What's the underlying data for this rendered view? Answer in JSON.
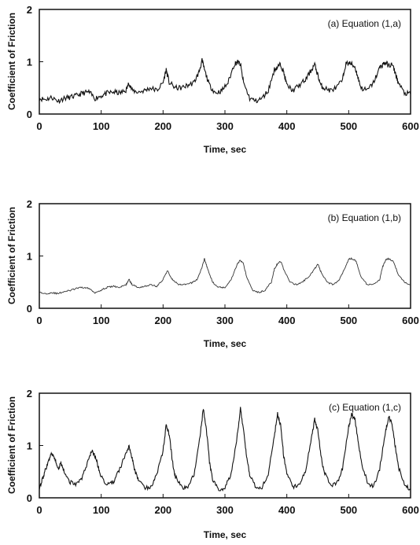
{
  "chart_data": [
    {
      "type": "line",
      "annotation": "(a) Equation (1,a)",
      "xlabel": "Time, sec",
      "ylabel": "Coefficient of Friction",
      "xlim": [
        0,
        600
      ],
      "ylim": [
        0,
        2
      ],
      "xticks": [
        "0",
        "100",
        "200",
        "300",
        "400",
        "500",
        "600"
      ],
      "yticks": [
        "0",
        "1",
        "2"
      ],
      "grid": false,
      "series": [
        {
          "x": [
            0,
            10,
            20,
            30,
            40,
            50,
            60,
            70,
            80,
            90,
            100,
            110,
            120,
            130,
            140,
            145,
            150,
            160,
            170,
            180,
            190,
            200,
            205,
            210,
            220,
            230,
            240,
            250,
            258,
            263,
            268,
            275,
            285,
            295,
            305,
            315,
            320,
            325,
            330,
            340,
            350,
            360,
            370,
            380,
            385,
            390,
            395,
            400,
            410,
            420,
            430,
            440,
            445,
            450,
            455,
            460,
            470,
            480,
            490,
            495,
            500,
            505,
            510,
            515,
            520,
            530,
            540,
            550,
            555,
            560,
            565,
            570,
            575,
            580,
            590,
            600
          ],
          "y": [
            0.3,
            0.28,
            0.32,
            0.25,
            0.3,
            0.32,
            0.35,
            0.4,
            0.42,
            0.3,
            0.35,
            0.4,
            0.42,
            0.4,
            0.45,
            0.6,
            0.45,
            0.42,
            0.45,
            0.5,
            0.45,
            0.6,
            0.85,
            0.6,
            0.5,
            0.5,
            0.55,
            0.6,
            0.8,
            1.02,
            0.8,
            0.55,
            0.4,
            0.45,
            0.6,
            0.95,
            1.0,
            0.95,
            0.6,
            0.3,
            0.25,
            0.3,
            0.45,
            0.85,
            0.9,
            0.95,
            0.8,
            0.55,
            0.45,
            0.55,
            0.65,
            0.85,
            0.95,
            0.75,
            0.55,
            0.5,
            0.45,
            0.5,
            0.65,
            0.95,
            0.98,
            0.95,
            0.9,
            0.7,
            0.5,
            0.45,
            0.6,
            0.88,
            0.95,
            0.98,
            0.92,
            0.95,
            0.8,
            0.6,
            0.4,
            0.38
          ]
        }
      ]
    },
    {
      "type": "line",
      "annotation": "(b) Equation (1,b)",
      "xlabel": "Time, sec",
      "ylabel": "Coefficient of Friction",
      "xlim": [
        0,
        600
      ],
      "ylim": [
        0,
        2
      ],
      "xticks": [
        "0",
        "100",
        "200",
        "300",
        "400",
        "500",
        "600"
      ],
      "yticks": [
        "0",
        "1",
        "2"
      ],
      "grid": false,
      "series": [
        {
          "x": [
            0,
            10,
            20,
            30,
            40,
            50,
            60,
            70,
            80,
            90,
            100,
            110,
            120,
            130,
            140,
            145,
            150,
            160,
            170,
            180,
            190,
            200,
            207,
            215,
            225,
            235,
            245,
            255,
            262,
            267,
            272,
            280,
            290,
            300,
            310,
            320,
            325,
            330,
            335,
            345,
            355,
            365,
            375,
            380,
            385,
            390,
            395,
            405,
            415,
            425,
            435,
            445,
            450,
            455,
            465,
            475,
            485,
            495,
            500,
            505,
            512,
            520,
            530,
            540,
            550,
            555,
            560,
            565,
            572,
            580,
            590,
            600
          ],
          "y": [
            0.3,
            0.28,
            0.3,
            0.28,
            0.32,
            0.34,
            0.38,
            0.4,
            0.38,
            0.3,
            0.35,
            0.4,
            0.42,
            0.4,
            0.45,
            0.55,
            0.45,
            0.4,
            0.42,
            0.45,
            0.42,
            0.55,
            0.72,
            0.55,
            0.45,
            0.45,
            0.48,
            0.55,
            0.75,
            0.95,
            0.75,
            0.5,
            0.4,
            0.4,
            0.55,
            0.85,
            0.92,
            0.85,
            0.6,
            0.35,
            0.3,
            0.35,
            0.5,
            0.75,
            0.85,
            0.9,
            0.75,
            0.5,
            0.45,
            0.5,
            0.6,
            0.75,
            0.85,
            0.7,
            0.5,
            0.45,
            0.55,
            0.8,
            0.95,
            0.95,
            0.9,
            0.6,
            0.45,
            0.45,
            0.55,
            0.8,
            0.92,
            0.95,
            0.9,
            0.65,
            0.5,
            0.45
          ]
        }
      ]
    },
    {
      "type": "line",
      "annotation": "(c) Equation (1,c)",
      "xlabel": "Time, sec",
      "ylabel": "Coefficient of Friction",
      "xlim": [
        0,
        600
      ],
      "ylim": [
        0,
        2
      ],
      "xticks": [
        "0",
        "100",
        "200",
        "300",
        "400",
        "500",
        "600"
      ],
      "yticks": [
        "0",
        "1",
        "2"
      ],
      "grid": false,
      "series": [
        {
          "x": [
            0,
            5,
            10,
            15,
            20,
            25,
            30,
            35,
            40,
            50,
            60,
            70,
            80,
            85,
            90,
            95,
            100,
            110,
            120,
            130,
            140,
            145,
            150,
            155,
            160,
            170,
            180,
            190,
            200,
            205,
            210,
            215,
            220,
            230,
            240,
            250,
            260,
            265,
            270,
            275,
            280,
            290,
            300,
            310,
            320,
            325,
            330,
            335,
            340,
            350,
            360,
            370,
            380,
            385,
            390,
            395,
            400,
            410,
            420,
            430,
            440,
            445,
            450,
            455,
            460,
            470,
            480,
            490,
            500,
            505,
            510,
            515,
            520,
            530,
            540,
            550,
            560,
            565,
            570,
            575,
            580,
            590,
            600
          ],
          "y": [
            0.2,
            0.35,
            0.55,
            0.7,
            0.85,
            0.75,
            0.55,
            0.65,
            0.5,
            0.3,
            0.25,
            0.4,
            0.75,
            0.9,
            0.8,
            0.6,
            0.4,
            0.25,
            0.3,
            0.55,
            0.85,
            1.0,
            0.75,
            0.5,
            0.35,
            0.2,
            0.2,
            0.45,
            0.9,
            1.4,
            1.2,
            0.7,
            0.4,
            0.2,
            0.2,
            0.45,
            1.2,
            1.7,
            1.3,
            0.7,
            0.35,
            0.15,
            0.2,
            0.45,
            1.2,
            1.7,
            1.3,
            0.8,
            0.45,
            0.2,
            0.2,
            0.45,
            1.2,
            1.6,
            1.4,
            0.8,
            0.45,
            0.2,
            0.25,
            0.5,
            1.15,
            1.5,
            1.3,
            0.8,
            0.5,
            0.25,
            0.25,
            0.55,
            1.35,
            1.6,
            1.5,
            1.1,
            0.7,
            0.3,
            0.2,
            0.55,
            1.3,
            1.55,
            1.4,
            1.0,
            0.6,
            0.25,
            0.15
          ]
        }
      ]
    }
  ]
}
